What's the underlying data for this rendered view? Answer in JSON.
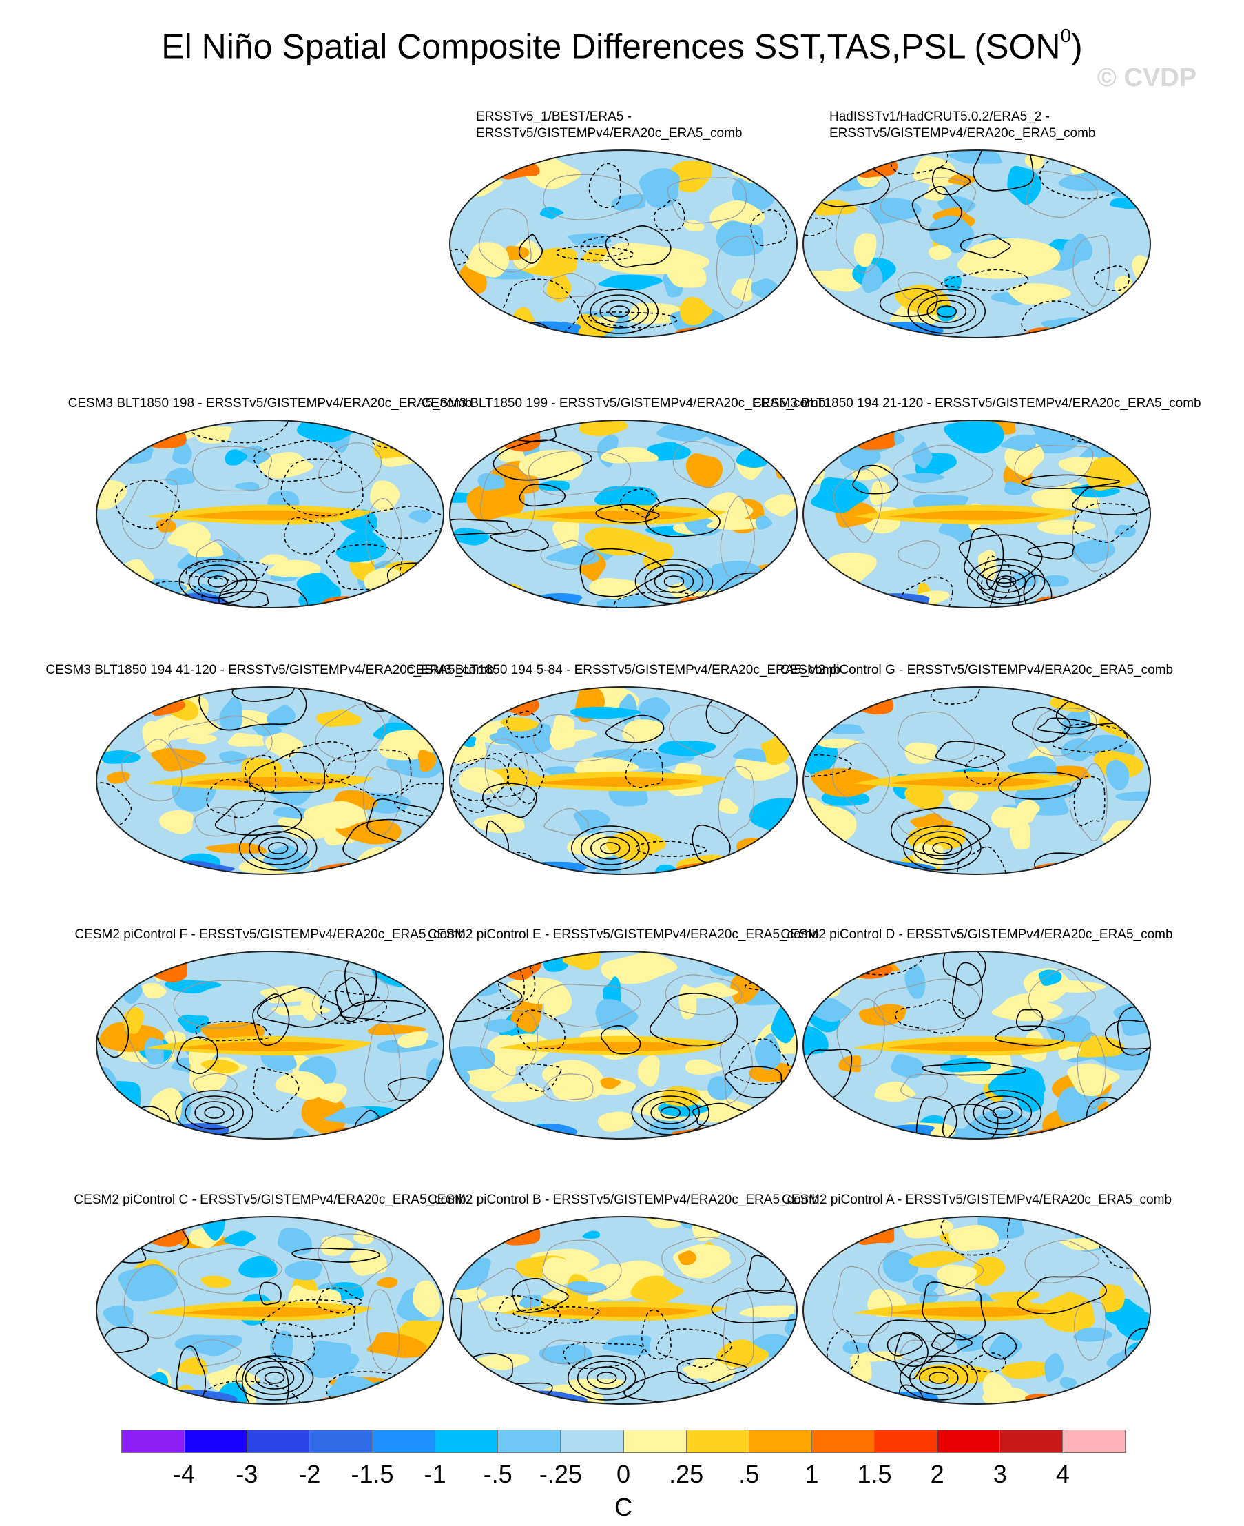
{
  "figure": {
    "title": "El Niño Spatial Composite Differences SST,TAS,PSL (SON",
    "title_superscript": "0",
    "title_close": ")",
    "watermark": "© CVDP"
  },
  "panels": [
    {
      "title_line1": "ERSSTv5_1/BEST/ERA5 -",
      "title_line2": "ERSSTv5/GISTEMPv4/ERA20c_ERA5_comb"
    },
    {
      "title_line1": "HadISSTv1/HadCRUT5.0.2/ERA5_2 -",
      "title_line2": "ERSSTv5/GISTEMPv4/ERA20c_ERA5_comb"
    },
    {
      "title_line1": "CESM3 BLT1850 198 - ERSSTv5/GISTEMPv4/ERA20c_ERA5_comb",
      "title_line2": ""
    },
    {
      "title_line1": "CESM3 BLT1850 199 - ERSSTv5/GISTEMPv4/ERA20c_ERA5_comb",
      "title_line2": ""
    },
    {
      "title_line1": "CESM3 BLT1850 194 21-120 - ERSSTv5/GISTEMPv4/ERA20c_ERA5_comb",
      "title_line2": ""
    },
    {
      "title_line1": "CESM3 BLT1850 194 41-120 - ERSSTv5/GISTEMPv4/ERA20c_ERA5_comb",
      "title_line2": ""
    },
    {
      "title_line1": "CESM3 BLT1850 194 5-84 - ERSSTv5/GISTEMPv4/ERA20c_ERA5_comb",
      "title_line2": ""
    },
    {
      "title_line1": "CESM2 piControl G - ERSSTv5/GISTEMPv4/ERA20c_ERA5_comb",
      "title_line2": ""
    },
    {
      "title_line1": "CESM2 piControl F - ERSSTv5/GISTEMPv4/ERA20c_ERA5_comb",
      "title_line2": ""
    },
    {
      "title_line1": "CESM2 piControl E - ERSSTv5/GISTEMPv4/ERA20c_ERA5_comb",
      "title_line2": ""
    },
    {
      "title_line1": "CESM2 piControl D - ERSSTv5/GISTEMPv4/ERA20c_ERA5_comb",
      "title_line2": ""
    },
    {
      "title_line1": "CESM2 piControl C - ERSSTv5/GISTEMPv4/ERA20c_ERA5_comb",
      "title_line2": ""
    },
    {
      "title_line1": "CESM2 piControl B - ERSSTv5/GISTEMPv4/ERA20c_ERA5_comb",
      "title_line2": ""
    },
    {
      "title_line1": "CESM2 piControl A - ERSSTv5/GISTEMPv4/ERA20c_ERA5_comb",
      "title_line2": ""
    }
  ],
  "colorbar": {
    "units": "C",
    "colors": [
      "#8b1ef5",
      "#1a00ff",
      "#2b44e6",
      "#2e6ce8",
      "#1e90ff",
      "#00bfff",
      "#6ec7f5",
      "#b0dcf2",
      "#fff59e",
      "#ffd21f",
      "#ffa500",
      "#ff7200",
      "#ff3700",
      "#e60000",
      "#c81a1a",
      "#ffb3b6"
    ],
    "labels": [
      "-4",
      "-3",
      "-2",
      "-1.5",
      "-1",
      "-.5",
      "-.25",
      "0",
      ".25",
      ".5",
      "1",
      "1.5",
      "2",
      "3",
      "4"
    ]
  },
  "colors": {
    "ocean_background": "#b0dcf2",
    "coastline": "#9a9a9a",
    "psl_contour": "#000000"
  }
}
